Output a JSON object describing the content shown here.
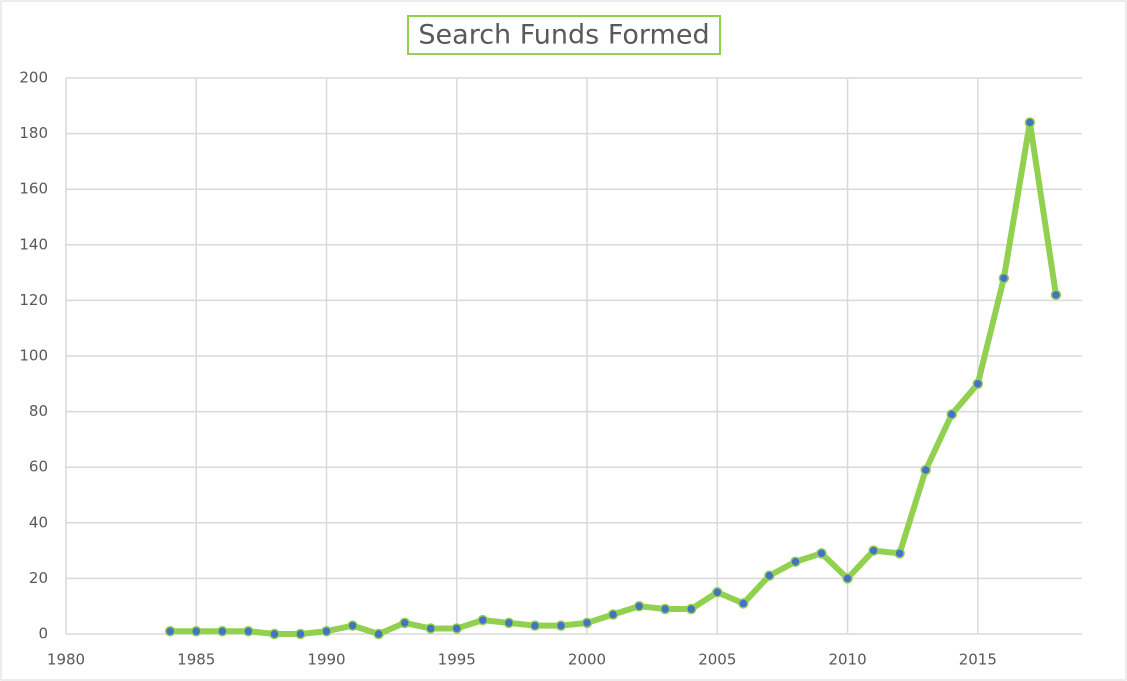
{
  "chart_data": {
    "type": "line",
    "title": "Search Funds Formed",
    "x": [
      1984,
      1985,
      1986,
      1987,
      1988,
      1989,
      1990,
      1991,
      1992,
      1993,
      1994,
      1995,
      1996,
      1997,
      1998,
      1999,
      2000,
      2001,
      2002,
      2003,
      2004,
      2005,
      2006,
      2007,
      2008,
      2009,
      2010,
      2011,
      2012,
      2013,
      2014,
      2015,
      2016,
      2017,
      2018
    ],
    "values": [
      1,
      1,
      1,
      1,
      0,
      0,
      1,
      3,
      0,
      4,
      2,
      2,
      5,
      4,
      3,
      3,
      4,
      7,
      10,
      9,
      9,
      15,
      11,
      21,
      26,
      29,
      20,
      30,
      29,
      59,
      79,
      90,
      128,
      184,
      122
    ],
    "color": "#92d050",
    "marker_color": "#4472c4",
    "xlim": [
      1980,
      2019
    ],
    "xticks": [
      1980,
      1985,
      1990,
      1995,
      2000,
      2005,
      2010,
      2015
    ],
    "ylim": [
      0,
      200
    ],
    "yticks": [
      0,
      20,
      40,
      60,
      80,
      100,
      120,
      140,
      160,
      180,
      200
    ],
    "grid": true
  }
}
